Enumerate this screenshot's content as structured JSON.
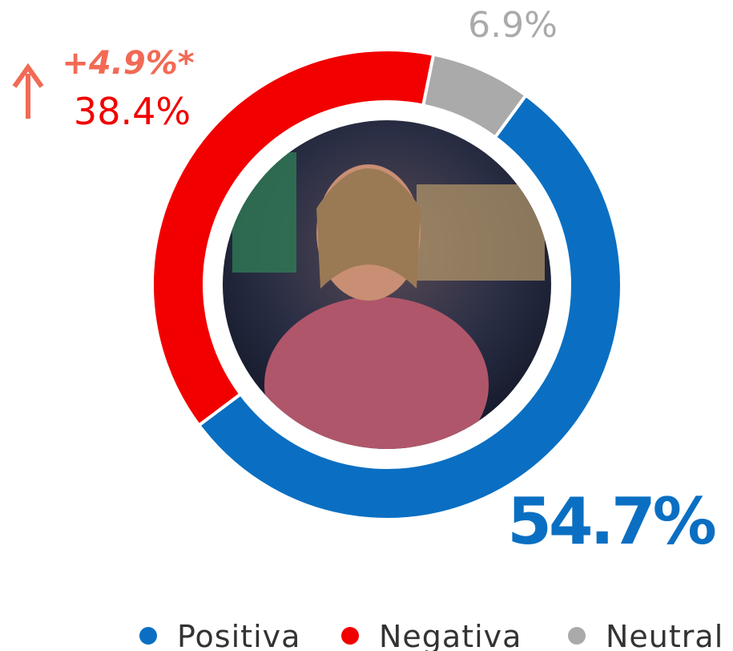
{
  "chart_data": {
    "type": "pie",
    "categories": [
      "Positiva",
      "Negativa",
      "Neutral"
    ],
    "values": [
      54.7,
      38.4,
      6.9
    ],
    "value_labels": [
      "54.7%",
      "38.4%",
      "6.9%"
    ],
    "colors": [
      "#0a6fc2",
      "#f20000",
      "#aaaaaa"
    ],
    "annotation": "+4.9%*",
    "legend": "bottom"
  }
}
